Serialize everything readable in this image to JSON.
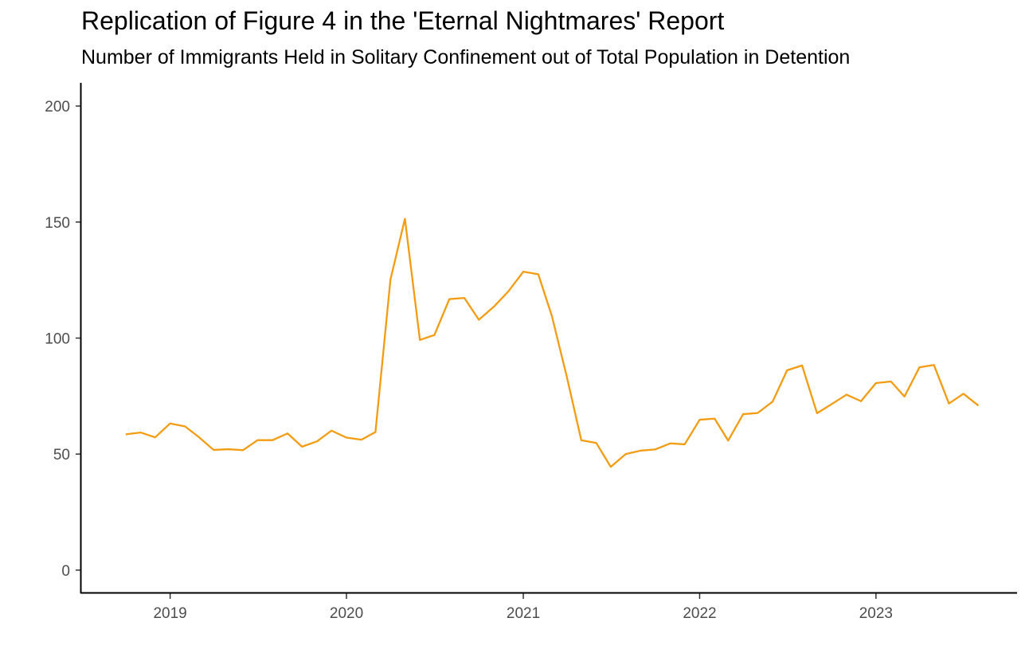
{
  "chart_data": {
    "type": "line",
    "title": "Replication of Figure 4 in the 'Eternal Nightmares' Report",
    "subtitle": "Number of Immigrants Held in Solitary Confinement out of Total Population in Detention",
    "xlabel": "",
    "ylabel": "",
    "xlim": [
      "2018-07-01",
      "2023-10-20"
    ],
    "ylim": [
      -10,
      210
    ],
    "x_ticks": [
      "2019-01-01",
      "2020-01-01",
      "2021-01-01",
      "2022-01-01",
      "2023-01-01"
    ],
    "x_tick_labels": [
      "2019",
      "2020",
      "2021",
      "2022",
      "2023"
    ],
    "y_ticks": [
      0,
      50,
      100,
      150,
      200
    ],
    "y_tick_labels": [
      "0",
      "50",
      "100",
      "150",
      "200"
    ],
    "grid": false,
    "color": "#f39c12",
    "series": [
      {
        "x": [
          "2018-10-01",
          "2018-11-01",
          "2018-12-01",
          "2019-01-01",
          "2019-02-01",
          "2019-03-01",
          "2019-04-01",
          "2019-05-01",
          "2019-06-01",
          "2019-07-01",
          "2019-08-01",
          "2019-09-01",
          "2019-10-01",
          "2019-11-01",
          "2019-12-01",
          "2020-01-01",
          "2020-02-01",
          "2020-03-01",
          "2020-04-01",
          "2020-05-01",
          "2020-06-01",
          "2020-07-01",
          "2020-08-01",
          "2020-09-01",
          "2020-10-01",
          "2020-11-01",
          "2020-12-01",
          "2021-01-01",
          "2021-02-01",
          "2021-03-01",
          "2021-04-01",
          "2021-05-01",
          "2021-06-01",
          "2021-07-01",
          "2021-08-01",
          "2021-09-01",
          "2021-10-01",
          "2021-11-01",
          "2021-12-01",
          "2022-01-01",
          "2022-02-01",
          "2022-03-01",
          "2022-04-01",
          "2022-05-01",
          "2022-06-01",
          "2022-07-01",
          "2022-08-01",
          "2022-09-01",
          "2022-10-01",
          "2022-11-01",
          "2022-12-01",
          "2023-01-01",
          "2023-02-01",
          "2023-03-01",
          "2023-04-01",
          "2023-05-01",
          "2023-06-01",
          "2023-07-01",
          "2023-08-01"
        ],
        "values": [
          58.5,
          59.3,
          57.2,
          63.2,
          61.9,
          57.4,
          51.8,
          52.1,
          51.7,
          56.0,
          56.0,
          58.9,
          53.2,
          55.5,
          60.1,
          57.1,
          56.2,
          59.5,
          125.2,
          151.4,
          99.2,
          101.3,
          116.8,
          117.3,
          107.9,
          113.5,
          120.1,
          128.6,
          127.5,
          109.6,
          83.4,
          56.0,
          54.8,
          44.5,
          50.0,
          51.5,
          52.0,
          54.6,
          54.2,
          64.8,
          65.3,
          55.8,
          67.2,
          67.7,
          72.6,
          86.1,
          88.2,
          67.6,
          71.5,
          75.6,
          72.8,
          80.6,
          81.3,
          74.8,
          87.4,
          88.4,
          71.8,
          76.0,
          70.9
        ]
      }
    ]
  }
}
